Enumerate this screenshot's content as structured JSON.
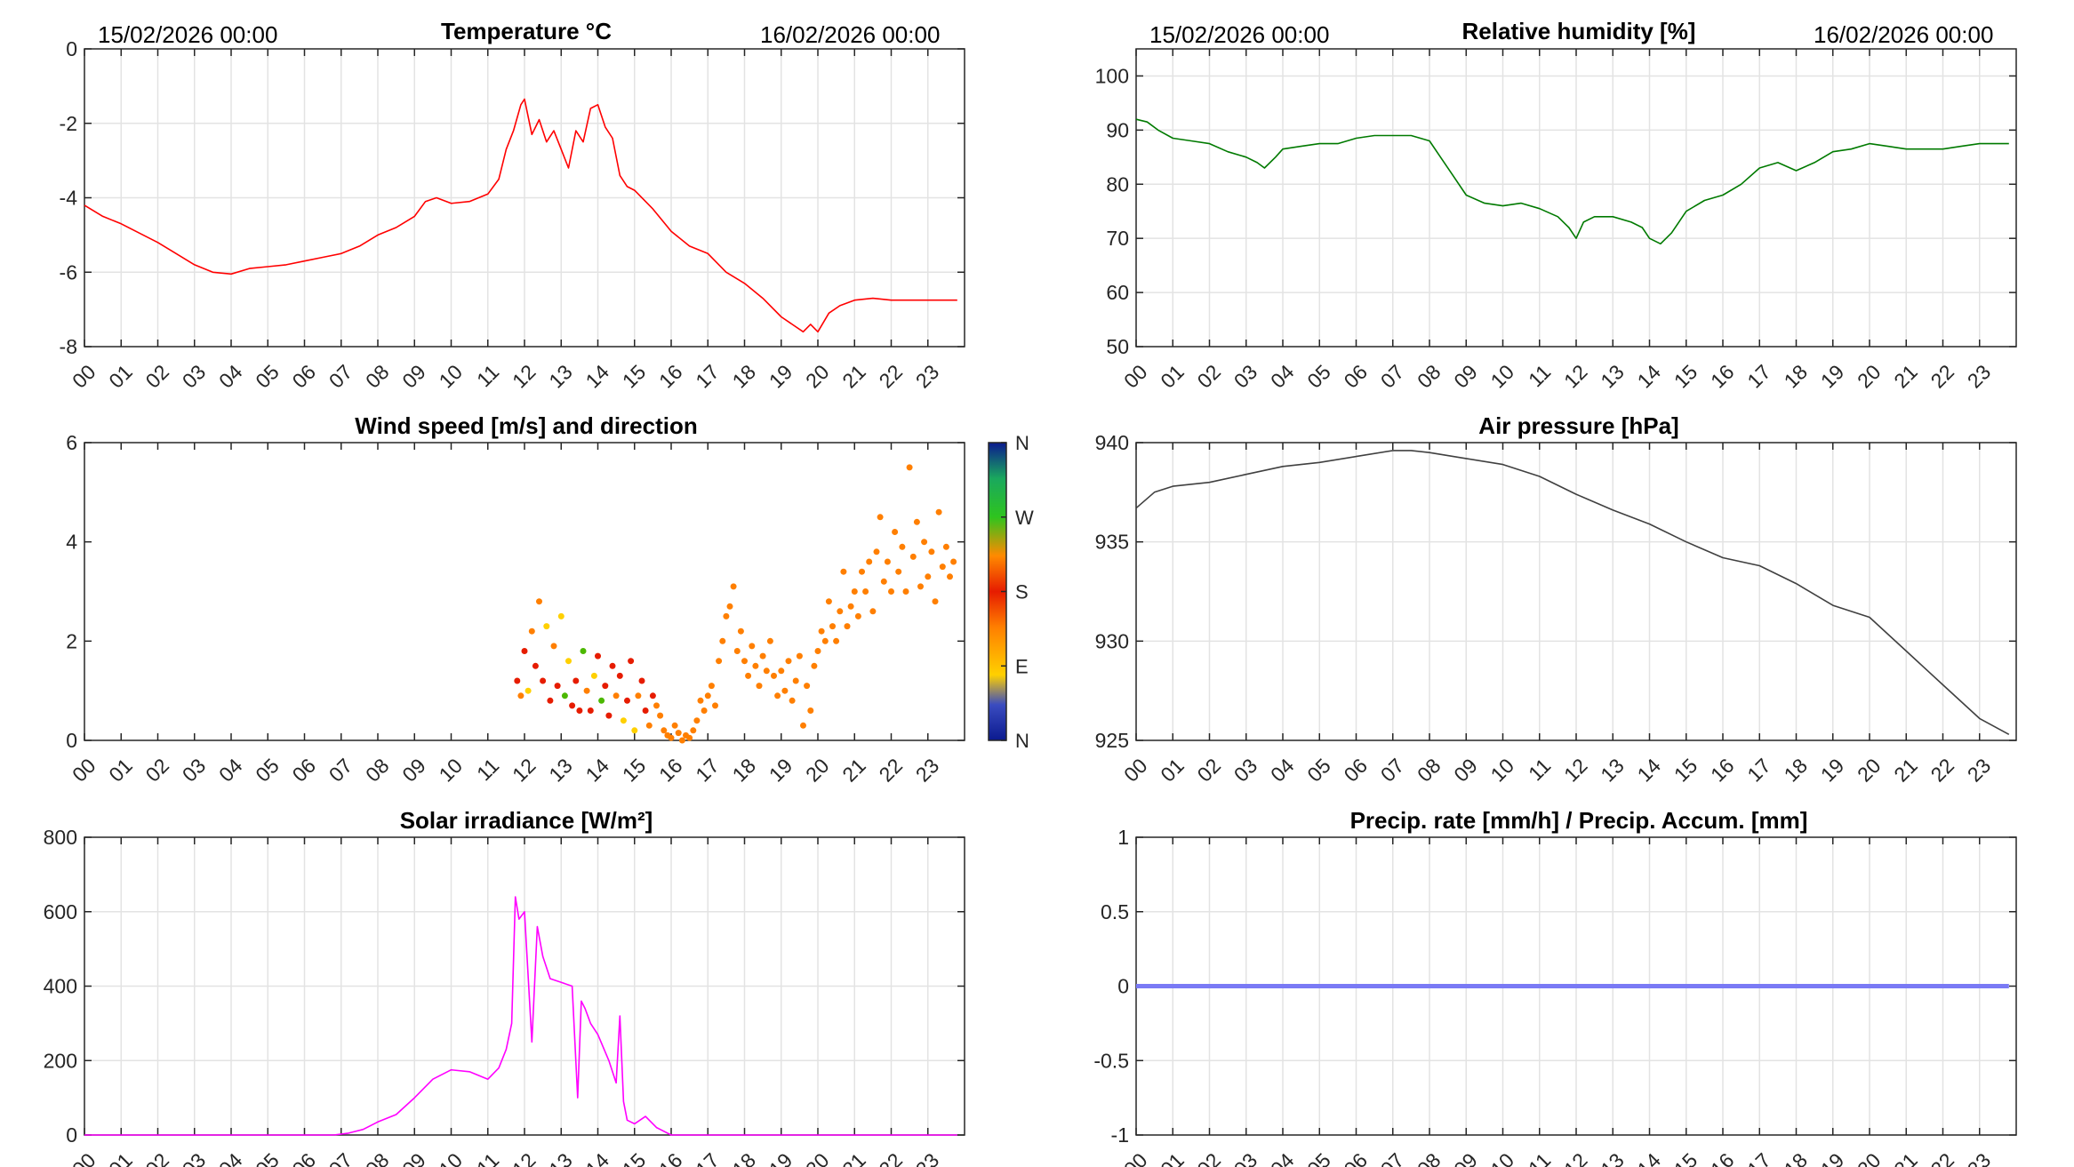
{
  "date_start": "15/02/2026 00:00",
  "date_end": "16/02/2026 00:00",
  "hours": [
    "00",
    "01",
    "02",
    "03",
    "04",
    "05",
    "06",
    "07",
    "08",
    "09",
    "10",
    "11",
    "12",
    "13",
    "14",
    "15",
    "16",
    "17",
    "18",
    "19",
    "20",
    "21",
    "22",
    "23"
  ],
  "chart_data": [
    {
      "id": "temperature",
      "type": "line",
      "title": "Temperature °C",
      "color": "#ff0000",
      "ylim": [
        -8,
        0
      ],
      "yticks": [
        0,
        -2,
        -4,
        -6,
        -8
      ],
      "ytick_labels": [
        "0",
        "-2",
        "-4",
        "-6",
        "-8"
      ],
      "grid": true,
      "x_hours": [
        0,
        0.5,
        1,
        1.5,
        2,
        2.5,
        3,
        3.5,
        4,
        4.5,
        5,
        5.5,
        6,
        6.5,
        7,
        7.5,
        8,
        8.5,
        9,
        9.3,
        9.6,
        10,
        10.5,
        11,
        11.3,
        11.5,
        11.7,
        11.9,
        12,
        12.2,
        12.4,
        12.6,
        12.8,
        13,
        13.2,
        13.4,
        13.6,
        13.8,
        14,
        14.2,
        14.4,
        14.6,
        14.8,
        15,
        15.5,
        16,
        16.5,
        17,
        17.5,
        18,
        18.5,
        19,
        19.3,
        19.6,
        19.8,
        20,
        20.3,
        20.6,
        21,
        21.5,
        22,
        22.5,
        23,
        23.8
      ],
      "y": [
        -4.2,
        -4.5,
        -4.7,
        -4.95,
        -5.2,
        -5.5,
        -5.8,
        -6.0,
        -6.05,
        -5.9,
        -5.85,
        -5.8,
        -5.7,
        -5.6,
        -5.5,
        -5.3,
        -5.0,
        -4.8,
        -4.5,
        -4.1,
        -4.0,
        -4.15,
        -4.1,
        -3.9,
        -3.5,
        -2.7,
        -2.2,
        -1.5,
        -1.35,
        -2.3,
        -1.9,
        -2.5,
        -2.2,
        -2.7,
        -3.2,
        -2.2,
        -2.5,
        -1.6,
        -1.5,
        -2.1,
        -2.4,
        -3.4,
        -3.7,
        -3.8,
        -4.3,
        -4.9,
        -5.3,
        -5.5,
        -6.0,
        -6.3,
        -6.7,
        -7.2,
        -7.4,
        -7.6,
        -7.4,
        -7.6,
        -7.1,
        -6.9,
        -6.75,
        -6.7,
        -6.75,
        -6.75,
        -6.75,
        -6.75
      ]
    },
    {
      "id": "humidity",
      "type": "line",
      "title": "Relative humidity [%]",
      "color": "#007a00",
      "ylim": [
        50,
        105
      ],
      "yticks": [
        100,
        90,
        80,
        70,
        60,
        50
      ],
      "ytick_labels": [
        "100",
        "90",
        "80",
        "70",
        "60",
        "50"
      ],
      "grid": true,
      "x_hours": [
        0,
        0.3,
        0.6,
        1,
        1.5,
        2,
        2.5,
        3,
        3.3,
        3.5,
        3.8,
        4,
        4.5,
        5,
        5.5,
        6,
        6.5,
        7,
        7.5,
        8,
        8.3,
        8.6,
        9,
        9.5,
        10,
        10.5,
        11,
        11.5,
        11.8,
        12,
        12.2,
        12.5,
        13,
        13.5,
        13.8,
        14,
        14.3,
        14.6,
        15,
        15.5,
        16,
        16.5,
        17,
        17.5,
        18,
        18.5,
        19,
        19.5,
        20,
        20.5,
        21,
        21.5,
        22,
        22.5,
        23,
        23.8
      ],
      "y": [
        92,
        91.5,
        90,
        88.5,
        88,
        87.5,
        86,
        85,
        84,
        83,
        85,
        86.5,
        87,
        87.5,
        87.5,
        88.5,
        89,
        89,
        89,
        88,
        85,
        82,
        78,
        76.5,
        76,
        76.5,
        75.5,
        74,
        72,
        70,
        73,
        74,
        74,
        73,
        72,
        70,
        69,
        71,
        75,
        77,
        78,
        80,
        83,
        84,
        82.5,
        84,
        86,
        86.5,
        87.5,
        87,
        86.5,
        86.5,
        86.5,
        87,
        87.5,
        87.5
      ]
    },
    {
      "id": "wind",
      "type": "scatter",
      "title": "Wind speed [m/s] and direction",
      "ylim": [
        0,
        6
      ],
      "yticks": [
        6,
        4,
        2,
        0
      ],
      "ytick_labels": [
        "6",
        "4",
        "2",
        "0"
      ],
      "grid": false,
      "colorbar_labels": [
        "N",
        "W",
        "S",
        "E",
        "N"
      ],
      "colors": {
        "south_orange": "#ff7f00",
        "south_red": "#e61c00",
        "southeast_yellow": "#ffd000",
        "east_green": "#4cb800",
        "north_blue": "#0b1a8f"
      },
      "x_hours": [
        11.8,
        11.9,
        12.0,
        12.1,
        12.2,
        12.3,
        12.4,
        12.5,
        12.6,
        12.7,
        12.8,
        12.9,
        13.0,
        13.1,
        13.2,
        13.3,
        13.4,
        13.5,
        13.6,
        13.7,
        13.8,
        13.9,
        14.0,
        14.1,
        14.2,
        14.3,
        14.4,
        14.5,
        14.6,
        14.7,
        14.8,
        14.9,
        15.0,
        15.1,
        15.2,
        15.3,
        15.4,
        15.5,
        15.6,
        15.7,
        15.8,
        15.9,
        16.0,
        16.1,
        16.2,
        16.3,
        16.4,
        16.5,
        16.6,
        16.7,
        16.8,
        16.9,
        17.0,
        17.1,
        17.2,
        17.3,
        17.4,
        17.5,
        17.6,
        17.7,
        17.8,
        17.9,
        18.0,
        18.1,
        18.2,
        18.3,
        18.4,
        18.5,
        18.6,
        18.7,
        18.8,
        18.9,
        19.0,
        19.1,
        19.2,
        19.3,
        19.4,
        19.5,
        19.6,
        19.7,
        19.8,
        19.9,
        20.0,
        20.1,
        20.2,
        20.3,
        20.4,
        20.5,
        20.6,
        20.7,
        20.8,
        20.9,
        21.0,
        21.1,
        21.2,
        21.3,
        21.4,
        21.5,
        21.6,
        21.7,
        21.8,
        21.9,
        22.0,
        22.1,
        22.2,
        22.3,
        22.4,
        22.5,
        22.6,
        22.7,
        22.8,
        22.9,
        23.0,
        23.1,
        23.2,
        23.3,
        23.4,
        23.5,
        23.6,
        23.7
      ],
      "y": [
        1.2,
        0.9,
        1.8,
        1.0,
        2.2,
        1.5,
        2.8,
        1.2,
        2.3,
        0.8,
        1.9,
        1.1,
        2.5,
        0.9,
        1.6,
        0.7,
        1.2,
        0.6,
        1.8,
        1.0,
        0.6,
        1.3,
        1.7,
        0.8,
        1.1,
        0.5,
        1.5,
        0.9,
        1.3,
        0.4,
        0.8,
        1.6,
        0.2,
        0.9,
        1.2,
        0.6,
        0.3,
        0.9,
        0.7,
        0.5,
        0.2,
        0.1,
        0.05,
        0.3,
        0.15,
        0.0,
        0.1,
        0.05,
        0.2,
        0.4,
        0.8,
        0.6,
        0.9,
        1.1,
        0.7,
        1.6,
        2.0,
        2.5,
        2.7,
        3.1,
        1.8,
        2.2,
        1.6,
        1.3,
        1.9,
        1.5,
        1.1,
        1.7,
        1.4,
        2.0,
        1.3,
        0.9,
        1.4,
        1.0,
        1.6,
        0.8,
        1.2,
        1.7,
        0.3,
        1.1,
        0.6,
        1.5,
        1.8,
        2.2,
        2.0,
        2.8,
        2.3,
        2.0,
        2.6,
        3.4,
        2.3,
        2.7,
        3.0,
        2.5,
        3.4,
        3.0,
        3.6,
        2.6,
        3.8,
        4.5,
        3.2,
        3.6,
        3.0,
        4.2,
        3.4,
        3.9,
        3.0,
        5.5,
        3.7,
        4.4,
        3.1,
        4.0,
        3.3,
        3.8,
        2.8,
        4.6,
        3.5,
        3.9,
        3.3,
        3.6
      ],
      "direction_class": [
        "red",
        "orange",
        "red",
        "yellow",
        "orange",
        "red",
        "orange",
        "red",
        "yellow",
        "red",
        "orange",
        "red",
        "yellow",
        "green",
        "yellow",
        "red",
        "red",
        "red",
        "green",
        "orange",
        "red",
        "yellow",
        "red",
        "green",
        "red",
        "red",
        "red",
        "orange",
        "red",
        "yellow",
        "red",
        "red",
        "yellow",
        "orange",
        "red",
        "red",
        "orange",
        "red",
        "orange",
        "orange",
        "orange",
        "orange",
        "orange",
        "orange",
        "orange",
        "orange",
        "orange",
        "orange",
        "orange",
        "orange",
        "orange",
        "orange",
        "orange",
        "orange",
        "orange",
        "orange",
        "orange",
        "orange",
        "orange",
        "orange",
        "orange",
        "orange",
        "orange",
        "orange",
        "orange",
        "orange",
        "orange",
        "orange",
        "orange",
        "orange",
        "orange",
        "orange",
        "orange",
        "orange",
        "orange",
        "orange",
        "orange",
        "orange",
        "orange",
        "orange",
        "orange",
        "orange",
        "orange",
        "orange",
        "orange",
        "orange",
        "orange",
        "orange",
        "orange",
        "orange",
        "orange",
        "orange",
        "orange",
        "orange",
        "orange",
        "orange",
        "orange",
        "orange",
        "orange",
        "orange",
        "orange",
        "orange",
        "orange",
        "orange",
        "orange",
        "orange",
        "orange",
        "orange",
        "orange",
        "orange",
        "orange",
        "orange",
        "orange",
        "orange",
        "orange",
        "orange",
        "orange",
        "orange",
        "orange",
        "orange"
      ]
    },
    {
      "id": "pressure",
      "type": "line",
      "title": "Air pressure [hPa]",
      "color": "#404040",
      "ylim": [
        925,
        940
      ],
      "yticks": [
        940,
        935,
        930,
        925
      ],
      "ytick_labels": [
        "940",
        "935",
        "930",
        "925"
      ],
      "grid": true,
      "x_hours": [
        0,
        0.5,
        1,
        2,
        3,
        4,
        5,
        6,
        7,
        7.5,
        8,
        9,
        10,
        11,
        12,
        13,
        14,
        15,
        16,
        17,
        18,
        19,
        20,
        21,
        22,
        23,
        23.8
      ],
      "y": [
        936.7,
        937.5,
        937.8,
        938.0,
        938.4,
        938.8,
        939.0,
        939.3,
        939.6,
        939.6,
        939.5,
        939.2,
        938.9,
        938.3,
        937.4,
        936.6,
        935.9,
        935.0,
        934.2,
        933.8,
        932.9,
        931.8,
        931.2,
        929.5,
        927.8,
        926.1,
        925.3
      ]
    },
    {
      "id": "solar",
      "type": "line",
      "title": "Solar irradiance [W/m²]",
      "color": "#ff00ff",
      "ylim": [
        0,
        800
      ],
      "yticks": [
        800,
        600,
        400,
        200,
        0
      ],
      "ytick_labels": [
        "800",
        "600",
        "400",
        "200",
        "0"
      ],
      "grid": true,
      "x_hours": [
        0,
        6.8,
        7.2,
        7.6,
        8,
        8.5,
        9,
        9.5,
        10,
        10.5,
        11,
        11.3,
        11.5,
        11.65,
        11.75,
        11.85,
        12,
        12.2,
        12.35,
        12.5,
        12.7,
        13,
        13.3,
        13.45,
        13.55,
        13.65,
        13.8,
        14,
        14.3,
        14.5,
        14.6,
        14.7,
        14.8,
        15,
        15.3,
        15.6,
        16,
        23.8
      ],
      "y": [
        0,
        0,
        5,
        15,
        35,
        55,
        100,
        150,
        175,
        170,
        150,
        180,
        230,
        300,
        640,
        580,
        600,
        250,
        560,
        480,
        420,
        410,
        400,
        100,
        360,
        340,
        300,
        270,
        200,
        140,
        320,
        90,
        40,
        30,
        50,
        20,
        0,
        0
      ]
    },
    {
      "id": "precip",
      "type": "line",
      "title": "Precip. rate [mm/h] / Precip. Accum. [mm]",
      "color": "#7a7af5",
      "ylim": [
        -1,
        1
      ],
      "yticks": [
        1,
        0.5,
        0,
        -0.5,
        -1
      ],
      "ytick_labels": [
        "1",
        "0.5",
        "0",
        "-0.5",
        "-1"
      ],
      "grid": true,
      "x_hours": [
        0,
        23.8
      ],
      "y": [
        0,
        0
      ]
    }
  ]
}
